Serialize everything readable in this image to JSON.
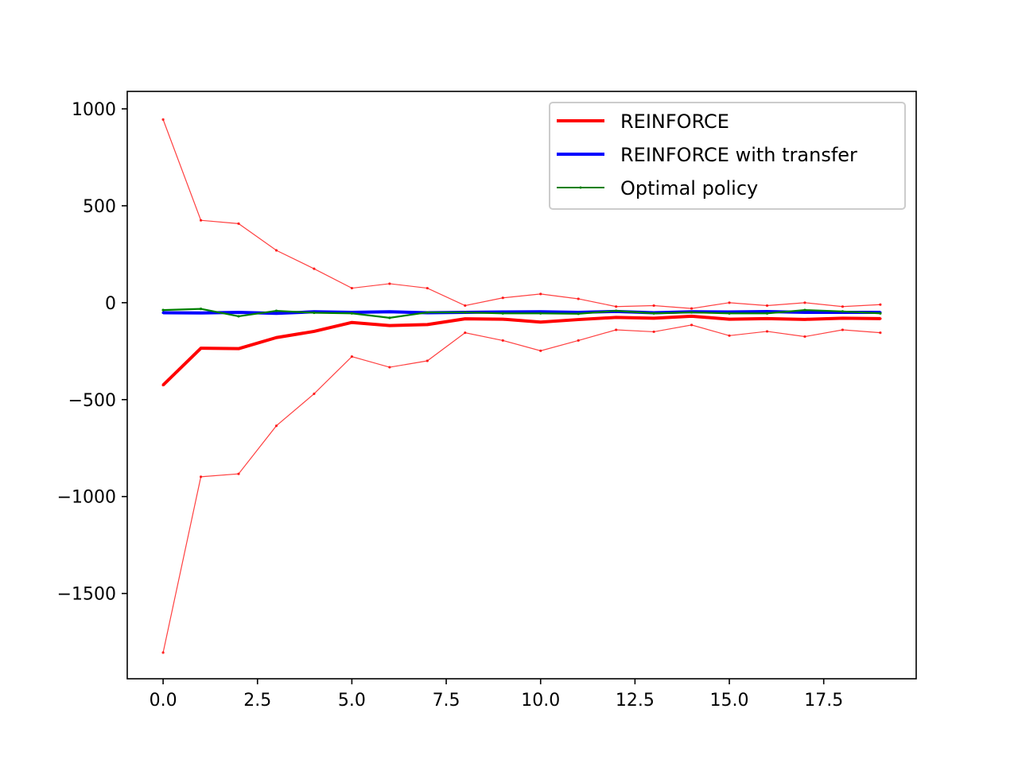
{
  "chart_data": {
    "type": "line",
    "title": "",
    "xlabel": "",
    "ylabel": "",
    "xlim": [
      -0.95,
      19.95
    ],
    "ylim": [
      -1940,
      1090
    ],
    "xticks": [
      0.0,
      2.5,
      5.0,
      7.5,
      10.0,
      12.5,
      15.0,
      17.5
    ],
    "xtick_labels": [
      "0.0",
      "2.5",
      "5.0",
      "7.5",
      "10.0",
      "12.5",
      "15.0",
      "17.5"
    ],
    "yticks": [
      1000,
      500,
      0,
      -500,
      -1000,
      -1500
    ],
    "ytick_labels": [
      "1000",
      "500",
      "0",
      "−500",
      "−1000",
      "−1500"
    ],
    "grid": false,
    "legend_placement": "top-right",
    "x": [
      0,
      1,
      2,
      3,
      4,
      5,
      6,
      7,
      8,
      9,
      10,
      11,
      12,
      13,
      14,
      15,
      16,
      17,
      18,
      19
    ],
    "series": [
      {
        "name": "REINFORCE",
        "color": "#ff0000",
        "values": [
          -425,
          -235,
          -237,
          -180,
          -148,
          -102,
          -118,
          -113,
          -83,
          -85,
          -100,
          -87,
          -76,
          -80,
          -70,
          -85,
          -82,
          -86,
          -80,
          -82
        ]
      },
      {
        "name": "REINFORCE with transfer",
        "color": "#0000ff",
        "values": [
          -52,
          -53,
          -50,
          -55,
          -47,
          -50,
          -47,
          -52,
          -50,
          -48,
          -47,
          -50,
          -45,
          -52,
          -47,
          -48,
          -46,
          -50,
          -50,
          -50
        ]
      },
      {
        "name": "Optimal policy",
        "color": "#008000",
        "values": [
          -38,
          -32,
          -70,
          -42,
          -52,
          -55,
          -78,
          -50,
          -50,
          -55,
          -55,
          -57,
          -42,
          -55,
          -50,
          -55,
          -55,
          -38,
          -45,
          -55
        ]
      }
    ],
    "bands": [
      {
        "color": "#ff0000",
        "upper": [
          945,
          425,
          408,
          270,
          175,
          75,
          98,
          75,
          -15,
          25,
          45,
          20,
          -20,
          -15,
          -30,
          0,
          -15,
          0,
          -20,
          -10
        ],
        "lower": [
          -1805,
          -898,
          -883,
          -635,
          -470,
          -278,
          -333,
          -300,
          -155,
          -195,
          -248,
          -195,
          -140,
          -150,
          -115,
          -170,
          -148,
          -175,
          -140,
          -155
        ]
      }
    ]
  }
}
